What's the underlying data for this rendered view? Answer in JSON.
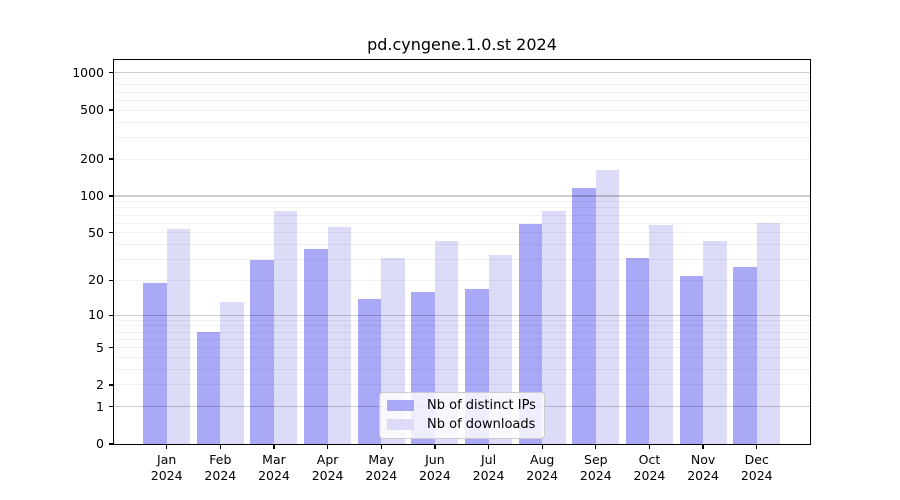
{
  "chart_data": {
    "type": "bar",
    "title": "pd.cyngene.1.0.st 2024",
    "months": [
      "Jan",
      "Feb",
      "Mar",
      "Apr",
      "May",
      "Jun",
      "Jul",
      "Aug",
      "Sep",
      "Oct",
      "Nov",
      "Dec"
    ],
    "year_label": "2024",
    "series": [
      {
        "name": "Nb of distinct IPs",
        "color": "#a9a9f7",
        "values": [
          19,
          7,
          30,
          37,
          14,
          16,
          17,
          59,
          117,
          31,
          22,
          26
        ]
      },
      {
        "name": "Nb of downloads",
        "color": "#dcdcf9",
        "values": [
          54,
          13,
          75,
          56,
          31,
          43,
          33,
          76,
          163,
          58,
          43,
          60
        ]
      }
    ],
    "y_ticks": [
      0,
      1,
      2,
      5,
      10,
      20,
      50,
      100,
      200,
      500,
      1000
    ],
    "y_scale": "log10(1+x)",
    "ylim": [
      0,
      1250
    ],
    "grid": {
      "major_at": [
        1,
        10,
        100,
        1000
      ],
      "minor_multiples": [
        2,
        3,
        4,
        5,
        6,
        7,
        8,
        9
      ]
    },
    "legend_position": "inside lower center",
    "colors": {
      "bar_dark": "#a9a9f7",
      "bar_light": "#dcdcf9",
      "grid_major": "#cccccc",
      "grid_minor": "#efefef",
      "axis": "#000000"
    }
  }
}
